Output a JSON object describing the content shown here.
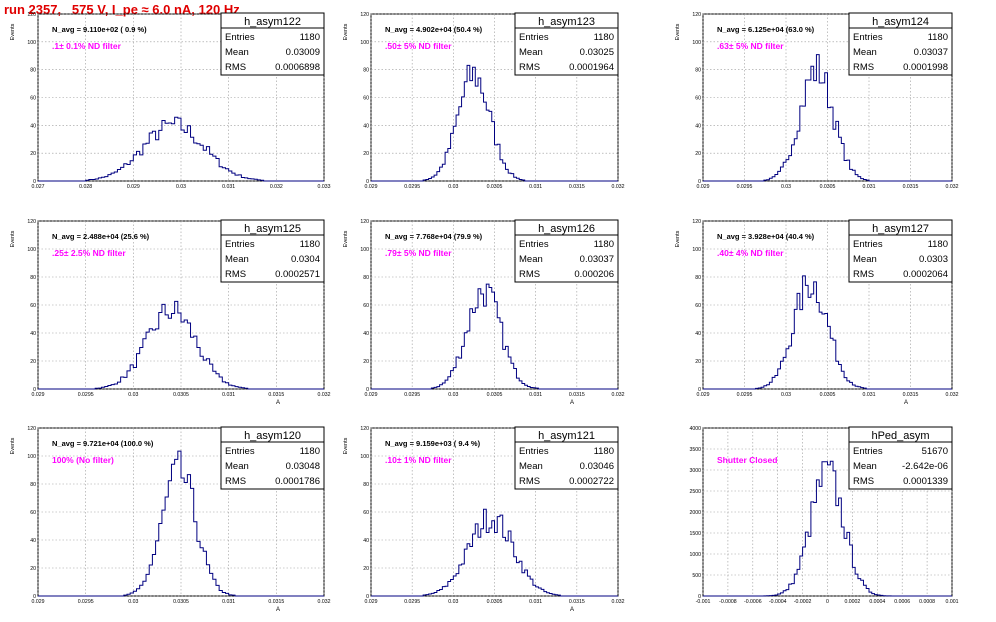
{
  "page_title": "run 2357,   575 V, I_pe ≈ 6.0 nA, 120 Hz",
  "colors": {
    "title": "#e00000",
    "histogram": "#000080",
    "annotation": "#ff00ff",
    "grid": "#9a9a9a"
  },
  "stat_labels": {
    "entries": "Entries",
    "mean": "Mean",
    "rms": "RMS"
  },
  "chart_data": [
    {
      "type": "histogram",
      "name": "h_asym122",
      "ylabel": "Events",
      "xlabel": "",
      "xlim": [
        0.027,
        0.0335
      ],
      "ylim": [
        0,
        120
      ],
      "xticks": [
        "0.027",
        "0.028",
        "0.029",
        "0.03",
        "0.031",
        "0.032",
        "0.033"
      ],
      "yticks": [
        "0",
        "20",
        "40",
        "60",
        "80",
        "100",
        "120"
      ],
      "header": "N_avg = 9.110e+02 ( 0.9 %)",
      "annotation": ".1± 0.1% ND filter",
      "stats": {
        "entries": "1180",
        "mean": "0.03009",
        "rms": "0.0006898"
      },
      "series": [
        {
          "mean": 0.03009,
          "rms": 0.0006898,
          "peak": 40
        }
      ]
    },
    {
      "type": "histogram",
      "name": "h_asym123",
      "ylabel": "Events",
      "xlabel": "",
      "xlim": [
        0.029,
        0.032
      ],
      "ylim": [
        0,
        120
      ],
      "xticks": [
        "0.029",
        "0.0295",
        "0.03",
        "0.0305",
        "0.031",
        "0.0315",
        "0.032"
      ],
      "yticks": [
        "0",
        "20",
        "40",
        "60",
        "80",
        "100",
        "120"
      ],
      "header": "N_avg = 4.902e+04 (50.4 %)",
      "annotation": ".50± 5% ND filter",
      "stats": {
        "entries": "1180",
        "mean": "0.03025",
        "rms": "0.0001964"
      },
      "series": [
        {
          "mean": 0.03025,
          "rms": 0.0001964,
          "peak": 76
        }
      ]
    },
    {
      "type": "histogram",
      "name": "h_asym124",
      "ylabel": "Events",
      "xlabel": "",
      "xlim": [
        0.029,
        0.032
      ],
      "ylim": [
        0,
        120
      ],
      "xticks": [
        "0.029",
        "0.0295",
        "0.03",
        "0.0305",
        "0.031",
        "0.0315",
        "0.032"
      ],
      "yticks": [
        "0",
        "20",
        "40",
        "60",
        "80",
        "100",
        "120"
      ],
      "header": "N_avg = 6.125e+04 (63.0 %)",
      "annotation": ".63± 5% ND filter",
      "stats": {
        "entries": "1180",
        "mean": "0.03037",
        "rms": "0.0001998"
      },
      "series": [
        {
          "mean": 0.03037,
          "rms": 0.0001998,
          "peak": 80
        }
      ]
    },
    {
      "type": "histogram",
      "name": "h_asym125",
      "ylabel": "Events",
      "xlabel": "A",
      "xlim": [
        0.029,
        0.032
      ],
      "ylim": [
        0,
        120
      ],
      "xticks": [
        "0.029",
        "0.0295",
        "0.03",
        "0.0305",
        "0.031",
        "0.0315",
        "0.032"
      ],
      "yticks": [
        "0",
        "20",
        "40",
        "60",
        "80",
        "100",
        "120"
      ],
      "header": "N_avg = 2.488e+04 (25.6 %)",
      "annotation": ".25± 2.5% ND filter",
      "stats": {
        "entries": "1180",
        "mean": "0.0304",
        "rms": "0.0002571"
      },
      "series": [
        {
          "mean": 0.0304,
          "rms": 0.0002571,
          "peak": 56
        }
      ]
    },
    {
      "type": "histogram",
      "name": "h_asym126",
      "ylabel": "Events",
      "xlabel": "A",
      "xlim": [
        0.029,
        0.032
      ],
      "ylim": [
        0,
        120
      ],
      "xticks": [
        "0.029",
        "0.0295",
        "0.03",
        "0.0305",
        "0.031",
        "0.0315",
        "0.032"
      ],
      "yticks": [
        "0",
        "20",
        "40",
        "60",
        "80",
        "100",
        "120"
      ],
      "header": "N_avg = 7.768e+04 (79.9 %)",
      "annotation": ".79± 5% ND filter",
      "stats": {
        "entries": "1180",
        "mean": "0.03037",
        "rms": "0.000206"
      },
      "series": [
        {
          "mean": 0.03037,
          "rms": 0.000206,
          "peak": 70
        }
      ]
    },
    {
      "type": "histogram",
      "name": "h_asym127",
      "ylabel": "Events",
      "xlabel": "A",
      "xlim": [
        0.029,
        0.032
      ],
      "ylim": [
        0,
        120
      ],
      "xticks": [
        "0.029",
        "0.0295",
        "0.03",
        "0.0305",
        "0.031",
        "0.0315",
        "0.032"
      ],
      "yticks": [
        "0",
        "20",
        "40",
        "60",
        "80",
        "100",
        "120"
      ],
      "header": "N_avg = 3.928e+04 (40.4 %)",
      "annotation": ".40± 4% ND filter",
      "stats": {
        "entries": "1180",
        "mean": "0.0303",
        "rms": "0.0002064"
      },
      "series": [
        {
          "mean": 0.0303,
          "rms": 0.0002064,
          "peak": 76
        }
      ]
    },
    {
      "type": "histogram",
      "name": "h_asym120",
      "ylabel": "Events",
      "xlabel": "A",
      "xlim": [
        0.029,
        0.032
      ],
      "ylim": [
        0,
        120
      ],
      "xticks": [
        "0.029",
        "0.0295",
        "0.03",
        "0.0305",
        "0.031",
        "0.0315",
        "0.032"
      ],
      "yticks": [
        "0",
        "20",
        "40",
        "60",
        "80",
        "100",
        "120"
      ],
      "header": "N_avg = 9.721e+04 (100.0 %)",
      "annotation": "100% (No filter)",
      "stats": {
        "entries": "1180",
        "mean": "0.03048",
        "rms": "0.0001786"
      },
      "series": [
        {
          "mean": 0.03048,
          "rms": 0.0001786,
          "peak": 88
        }
      ]
    },
    {
      "type": "histogram",
      "name": "h_asym121",
      "ylabel": "Events",
      "xlabel": "A",
      "xlim": [
        0.029,
        0.032
      ],
      "ylim": [
        0,
        120
      ],
      "xticks": [
        "0.029",
        "0.0295",
        "0.03",
        "0.0305",
        "0.031",
        "0.0315",
        "0.032"
      ],
      "yticks": [
        "0",
        "20",
        "40",
        "60",
        "80",
        "100",
        "120"
      ],
      "header": "N_avg = 9.159e+03 ( 9.4 %)",
      "annotation": ".10± 1% ND filter",
      "stats": {
        "entries": "1180",
        "mean": "0.03046",
        "rms": "0.0002722"
      },
      "series": [
        {
          "mean": 0.03046,
          "rms": 0.0002722,
          "peak": 56
        }
      ]
    },
    {
      "type": "histogram",
      "name": "hPed_asym",
      "ylabel": "",
      "xlabel": "",
      "xlim": [
        -0.001,
        0.001
      ],
      "ylim": [
        0,
        4000
      ],
      "xticks": [
        "-0.001",
        "-0.0008",
        "-0.0006",
        "-0.0004",
        "-0.0002",
        "0",
        "0.0002",
        "0.0004",
        "0.0006",
        "0.0008",
        "0.001"
      ],
      "yticks": [
        "0",
        "500",
        "1000",
        "1500",
        "2000",
        "2500",
        "3000",
        "3500",
        "4000"
      ],
      "header": "",
      "annotation": "Shutter Closed",
      "stats": {
        "entries": "51670",
        "mean": "-2.642e-06",
        "rms": "0.0001339"
      },
      "series": [
        {
          "mean": -2.642e-06,
          "rms": 0.0001339,
          "peak": 2900
        }
      ]
    }
  ]
}
